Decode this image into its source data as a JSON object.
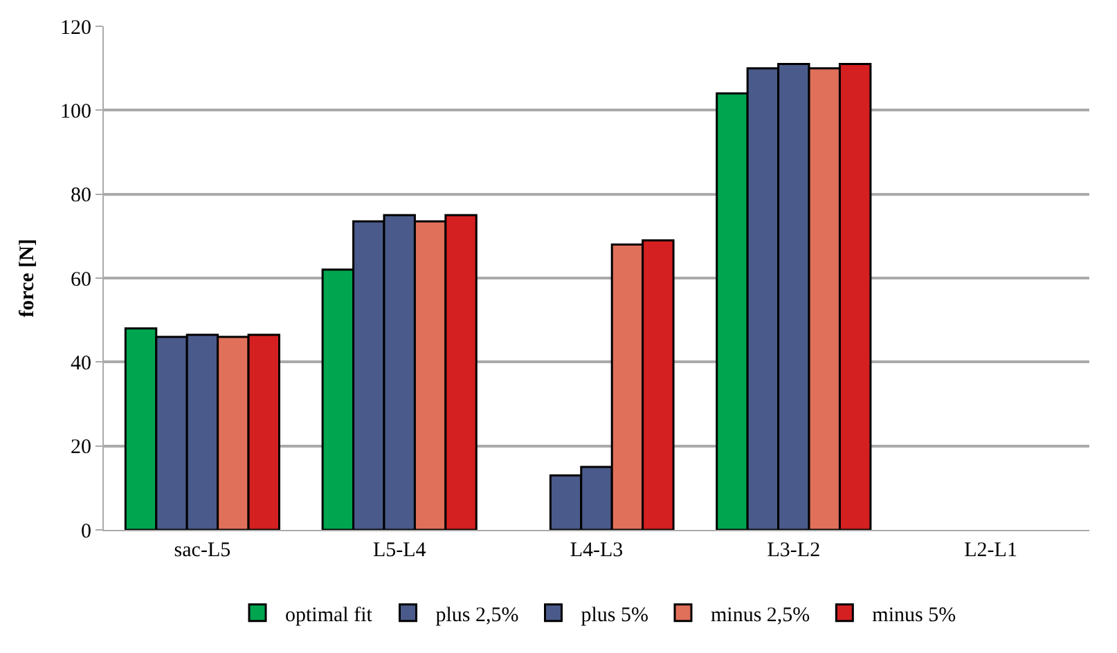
{
  "chart_data": {
    "type": "bar",
    "ylabel": "force [N]",
    "categories": [
      "sac-L5",
      "L5-L4",
      "L4-L3",
      "L3-L2",
      "L2-L1"
    ],
    "series": [
      {
        "name": "optimal fit",
        "color": "#00a550",
        "values": [
          48,
          62,
          null,
          104,
          null
        ]
      },
      {
        "name": "plus 2,5%",
        "color": "#4a5a8a",
        "values": [
          46,
          73.5,
          13,
          110,
          null
        ]
      },
      {
        "name": "plus 5%",
        "color": "#4a5a8a",
        "values": [
          46.5,
          75,
          15,
          111,
          null
        ]
      },
      {
        "name": "minus 2,5%",
        "color": "#e0705a",
        "values": [
          46,
          73.5,
          68,
          110,
          null
        ]
      },
      {
        "name": "minus 5%",
        "color": "#d42020",
        "values": [
          46.5,
          75,
          69,
          111,
          null
        ]
      }
    ],
    "ylim": [
      0,
      120
    ],
    "yticks": [
      0,
      20,
      40,
      60,
      80,
      100,
      120
    ],
    "grid": "y",
    "legend": "bottom"
  }
}
